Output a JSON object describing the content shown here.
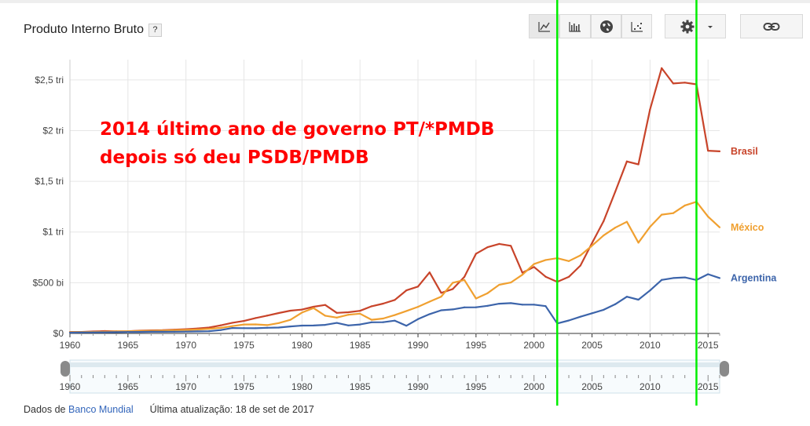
{
  "header": {
    "title": "Produto Interno Bruto",
    "help_label": "?",
    "view_buttons": [
      {
        "name": "line-chart",
        "icon": "line-chart-icon"
      },
      {
        "name": "bar-chart",
        "icon": "bar-chart-icon"
      },
      {
        "name": "map",
        "icon": "globe-icon"
      },
      {
        "name": "scatter",
        "icon": "scatter-plot-icon"
      }
    ],
    "settings_icon": "gear-icon",
    "dropdown_icon": "caret-down-icon",
    "link_icon": "link-icon"
  },
  "annotation": {
    "line1": "2014 último ano de governo PT/*PMDB",
    "line2": "depois só deu PSDB/PMDB",
    "color": "#ff0000"
  },
  "footer": {
    "source_prefix": "Dados de",
    "source_link": "Banco Mundial",
    "updated": "Última atualização: 18 de set de 2017"
  },
  "chart_data": {
    "type": "line",
    "x": [
      1960,
      1961,
      1962,
      1963,
      1964,
      1965,
      1966,
      1967,
      1968,
      1969,
      1970,
      1971,
      1972,
      1973,
      1974,
      1975,
      1976,
      1977,
      1978,
      1979,
      1980,
      1981,
      1982,
      1983,
      1984,
      1985,
      1986,
      1987,
      1988,
      1989,
      1990,
      1991,
      1992,
      1993,
      1994,
      1995,
      1996,
      1997,
      1998,
      1999,
      2000,
      2001,
      2002,
      2003,
      2004,
      2005,
      2006,
      2007,
      2008,
      2009,
      2010,
      2011,
      2012,
      2013,
      2014,
      2015,
      2016
    ],
    "series": [
      {
        "name": "Brasil",
        "color": "#c8442a",
        "values": [
          15,
          15,
          19,
          23,
          21,
          22,
          27,
          30,
          32,
          37,
          42,
          49,
          58,
          80,
          105,
          123,
          152,
          176,
          201,
          224,
          235,
          263,
          281,
          203,
          209,
          223,
          268,
          294,
          330,
          425,
          462,
          602,
          400,
          438,
          558,
          786,
          850,
          883,
          864,
          599,
          655,
          559,
          508,
          558,
          669,
          892,
          1107,
          1397,
          1696,
          1667,
          2209,
          2616,
          2465,
          2473,
          2456,
          1802,
          1796
        ]
      },
      {
        "name": "México",
        "color": "#f0a030",
        "values": [
          13,
          14,
          15,
          17,
          20,
          22,
          24,
          26,
          29,
          32,
          35,
          39,
          45,
          55,
          72,
          88,
          89,
          82,
          102,
          134,
          206,
          250,
          175,
          156,
          184,
          195,
          135,
          147,
          181,
          221,
          262,
          313,
          363,
          500,
          527,
          344,
          397,
          480,
          502,
          579,
          684,
          724,
          742,
          713,
          770,
          866,
          966,
          1043,
          1101,
          895,
          1051,
          1171,
          1186,
          1262,
          1298,
          1152,
          1046
        ]
      },
      {
        "name": "Argentina",
        "color": "#3c64aa",
        "values": [
          8,
          10,
          10,
          11,
          12,
          14,
          15,
          16,
          16,
          17,
          18,
          20,
          22,
          33,
          53,
          52,
          51,
          56,
          58,
          69,
          77,
          78,
          84,
          104,
          79,
          88,
          110,
          111,
          126,
          76,
          141,
          190,
          228,
          237,
          257,
          258,
          272,
          293,
          299,
          284,
          284,
          269,
          98,
          128,
          165,
          199,
          233,
          288,
          362,
          333,
          424,
          528,
          546,
          552,
          527,
          584,
          546
        ]
      }
    ],
    "xlim": [
      1960,
      2016
    ],
    "ylim": [
      0,
      2700
    ],
    "y_ticks": [
      {
        "value": 0,
        "label": "$0"
      },
      {
        "value": 500,
        "label": "$500 bi"
      },
      {
        "value": 1000,
        "label": "$1 tri"
      },
      {
        "value": 1500,
        "label": "$1,5 tri"
      },
      {
        "value": 2000,
        "label": "$2 tri"
      },
      {
        "value": 2500,
        "label": "$2,5 tri"
      }
    ],
    "x_ticks": [
      1960,
      1965,
      1970,
      1975,
      1980,
      1985,
      1990,
      1995,
      2000,
      2005,
      2010,
      2015
    ],
    "grid": true,
    "legend": "right, at series end",
    "markers": [
      {
        "x": 2002,
        "color": "#00ee00"
      },
      {
        "x": 2014,
        "color": "#00ee00"
      }
    ]
  }
}
